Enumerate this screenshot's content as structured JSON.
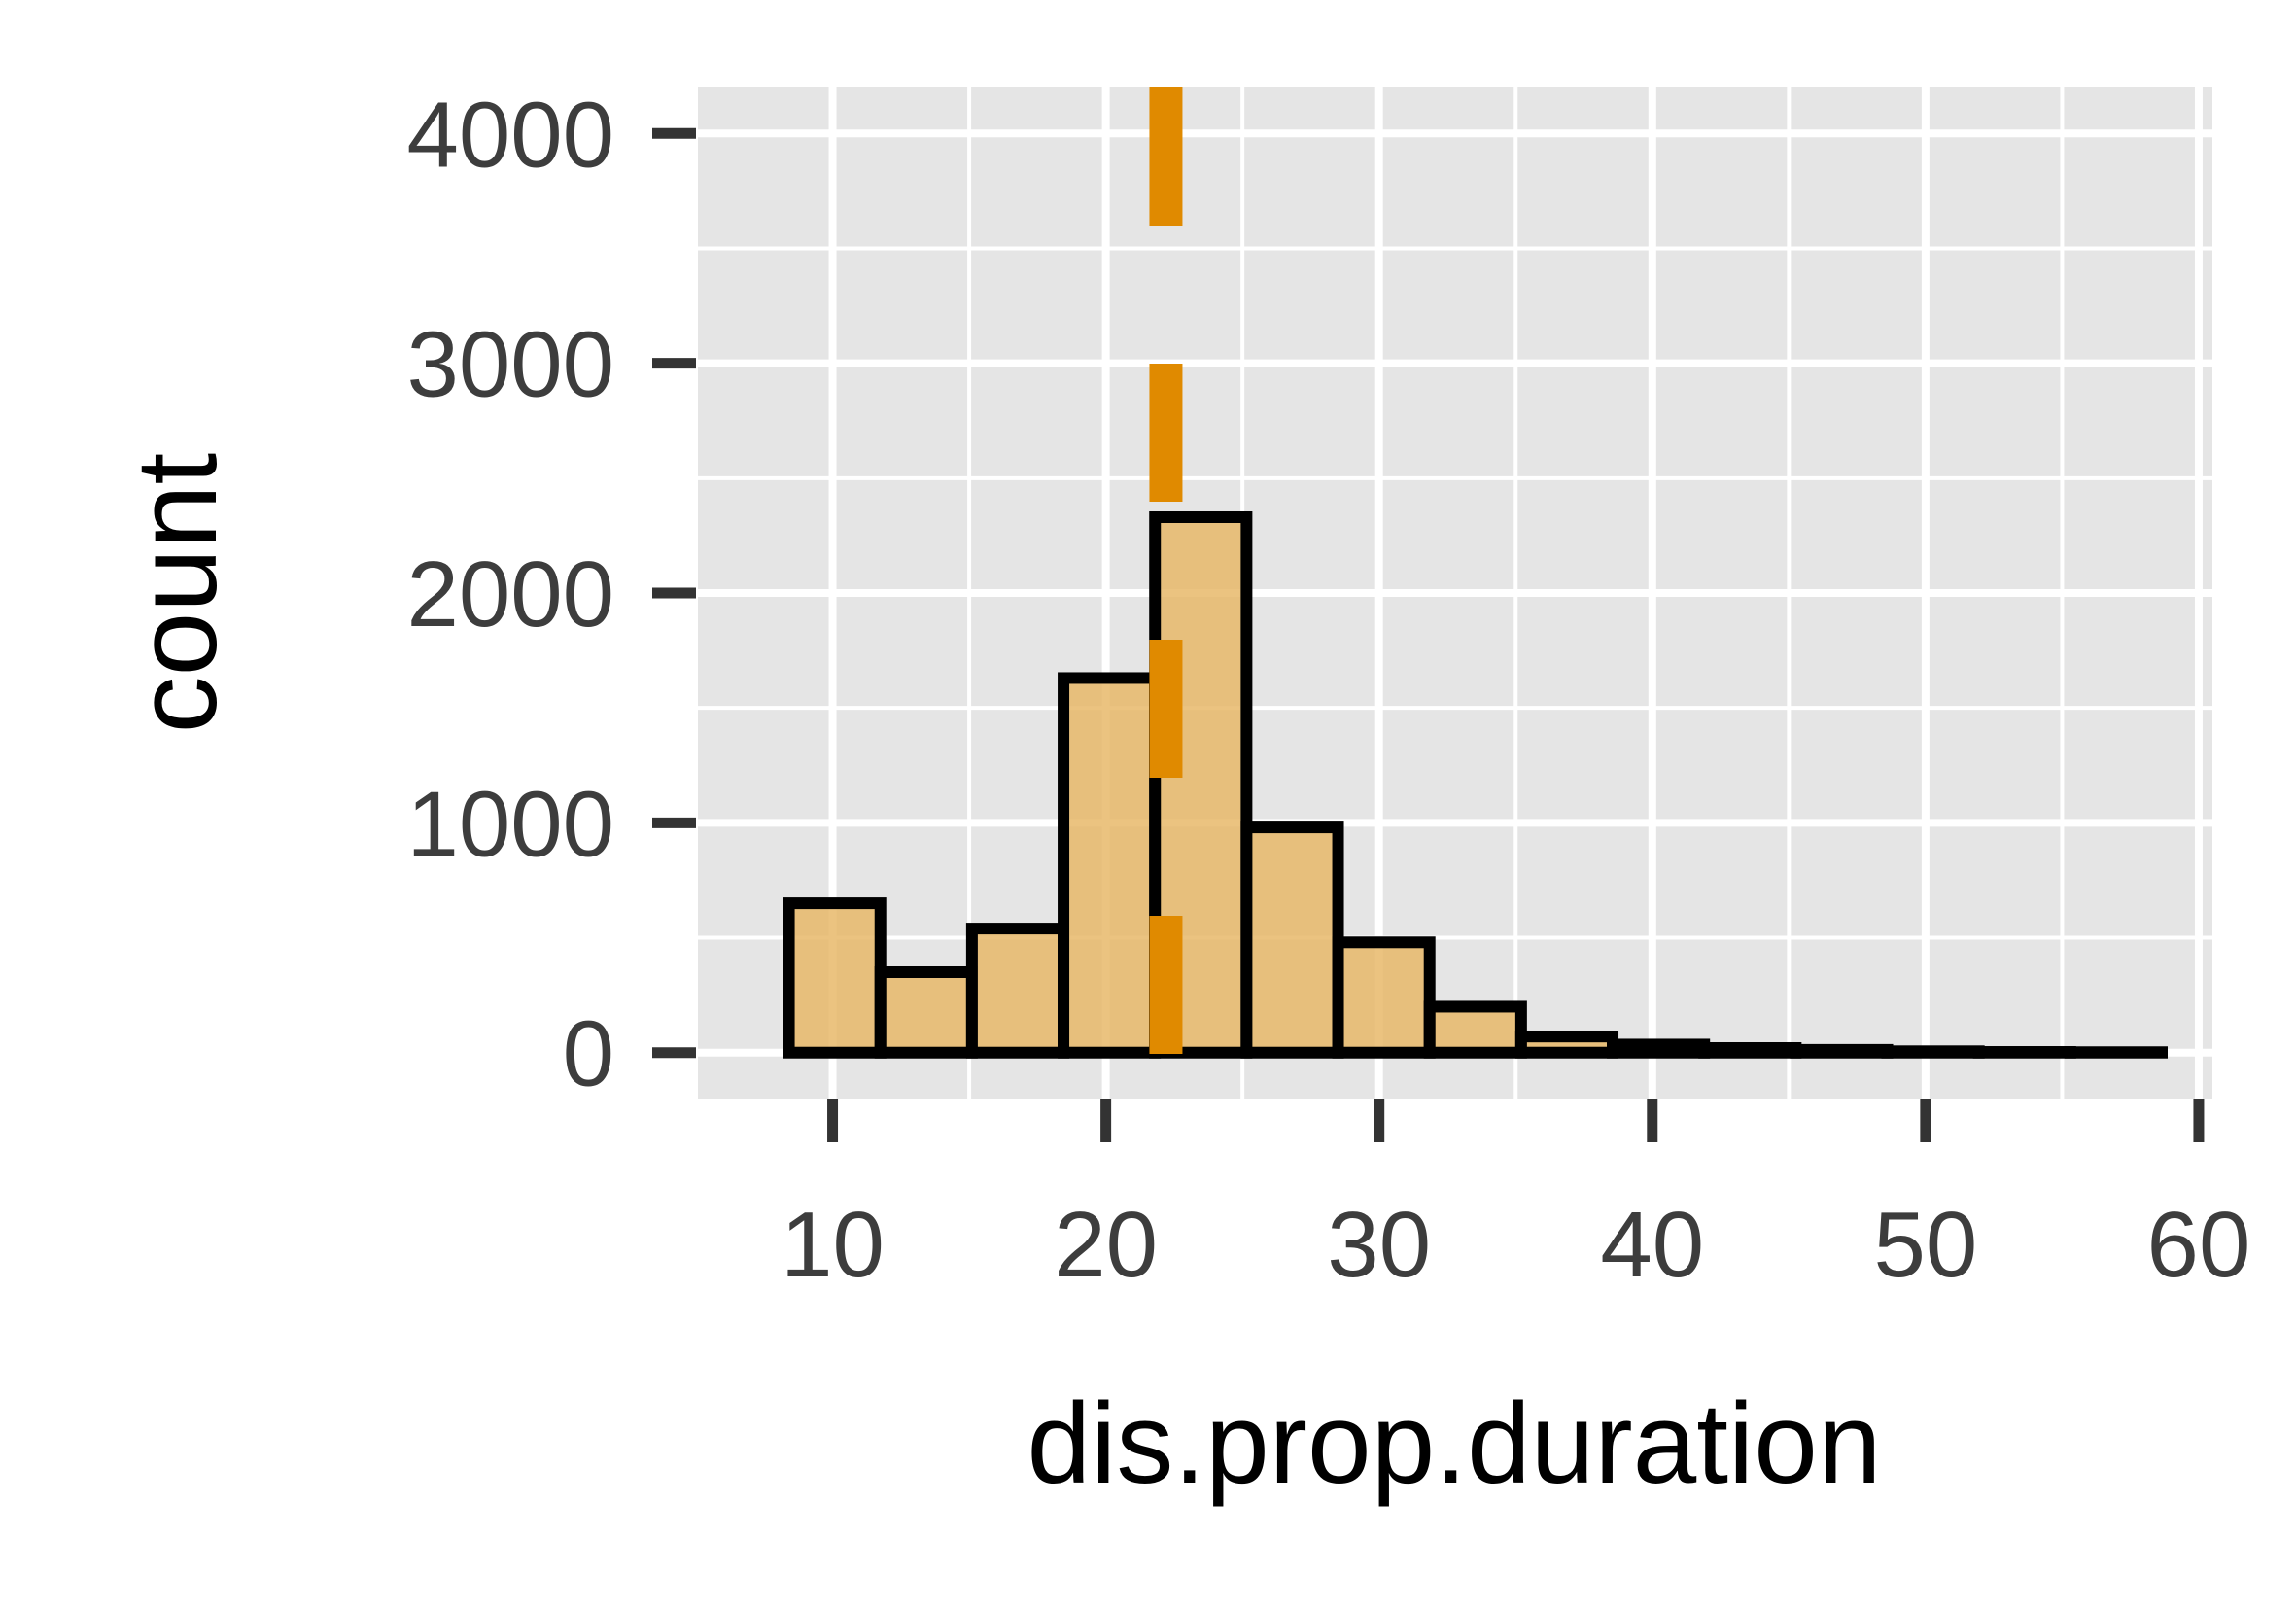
{
  "chart_data": {
    "type": "bar",
    "title": "",
    "xlabel": "dis.prop.duration",
    "ylabel": "count",
    "xlim": [
      5,
      60.5
    ],
    "ylim": [
      -200,
      4200
    ],
    "x_ticks": [
      10,
      20,
      30,
      40,
      50,
      60
    ],
    "y_ticks": [
      0,
      1000,
      2000,
      3000,
      4000
    ],
    "grid": true,
    "legend": "none",
    "bins": [
      {
        "x0": 8.4,
        "x1": 11.75,
        "count": 650
      },
      {
        "x0": 11.75,
        "x1": 15.1,
        "count": 350
      },
      {
        "x0": 15.1,
        "x1": 18.45,
        "count": 540
      },
      {
        "x0": 18.45,
        "x1": 21.8,
        "count": 1630
      },
      {
        "x0": 21.8,
        "x1": 25.15,
        "count": 2330
      },
      {
        "x0": 25.15,
        "x1": 28.5,
        "count": 980
      },
      {
        "x0": 28.5,
        "x1": 31.85,
        "count": 480
      },
      {
        "x0": 31.85,
        "x1": 35.2,
        "count": 200
      },
      {
        "x0": 35.2,
        "x1": 38.55,
        "count": 70
      },
      {
        "x0": 38.55,
        "x1": 41.9,
        "count": 35
      },
      {
        "x0": 41.9,
        "x1": 45.25,
        "count": 20
      },
      {
        "x0": 45.25,
        "x1": 48.6,
        "count": 12
      },
      {
        "x0": 48.6,
        "x1": 51.95,
        "count": 6
      },
      {
        "x0": 51.95,
        "x1": 55.3,
        "count": 3
      },
      {
        "x0": 55.3,
        "x1": 58.65,
        "count": 2
      }
    ],
    "reference_line": {
      "x": 22.2,
      "style": "dashed",
      "color": "#E08A00"
    },
    "colors": {
      "panel": "#E5E5E5",
      "grid": "#FFFFFF",
      "bar_fill": "#E8B86A",
      "bar_stroke": "#000000",
      "tick": "#333333"
    }
  }
}
